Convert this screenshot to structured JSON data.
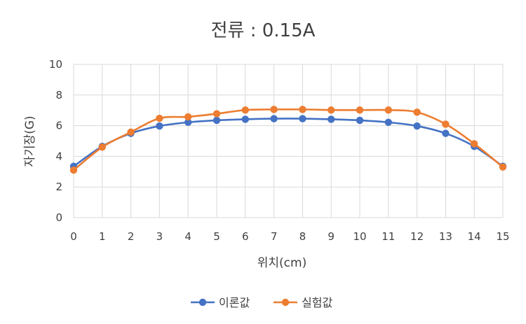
{
  "chart_data": {
    "type": "line",
    "title": "전류 : 0.15A",
    "xlabel": "위치(cm)",
    "ylabel": "자기장(G)",
    "x": [
      0,
      1,
      2,
      3,
      4,
      5,
      6,
      7,
      8,
      9,
      10,
      11,
      12,
      13,
      14,
      15
    ],
    "xlim": [
      0,
      15
    ],
    "ylim": [
      0,
      10
    ],
    "yticks": [
      0,
      2,
      4,
      6,
      8,
      10
    ],
    "grid": true,
    "legend_position": "bottom",
    "series": [
      {
        "name": "이론값",
        "color": "#4472C4",
        "values": [
          3.35,
          4.65,
          5.5,
          5.98,
          6.22,
          6.35,
          6.42,
          6.46,
          6.46,
          6.42,
          6.35,
          6.22,
          5.98,
          5.5,
          4.65,
          3.35
        ]
      },
      {
        "name": "실험값",
        "color": "#ED7D31",
        "values": [
          3.1,
          4.6,
          5.58,
          6.48,
          6.58,
          6.78,
          7.02,
          7.06,
          7.06,
          7.02,
          7.02,
          7.02,
          6.88,
          6.1,
          4.82,
          3.3
        ]
      }
    ]
  }
}
